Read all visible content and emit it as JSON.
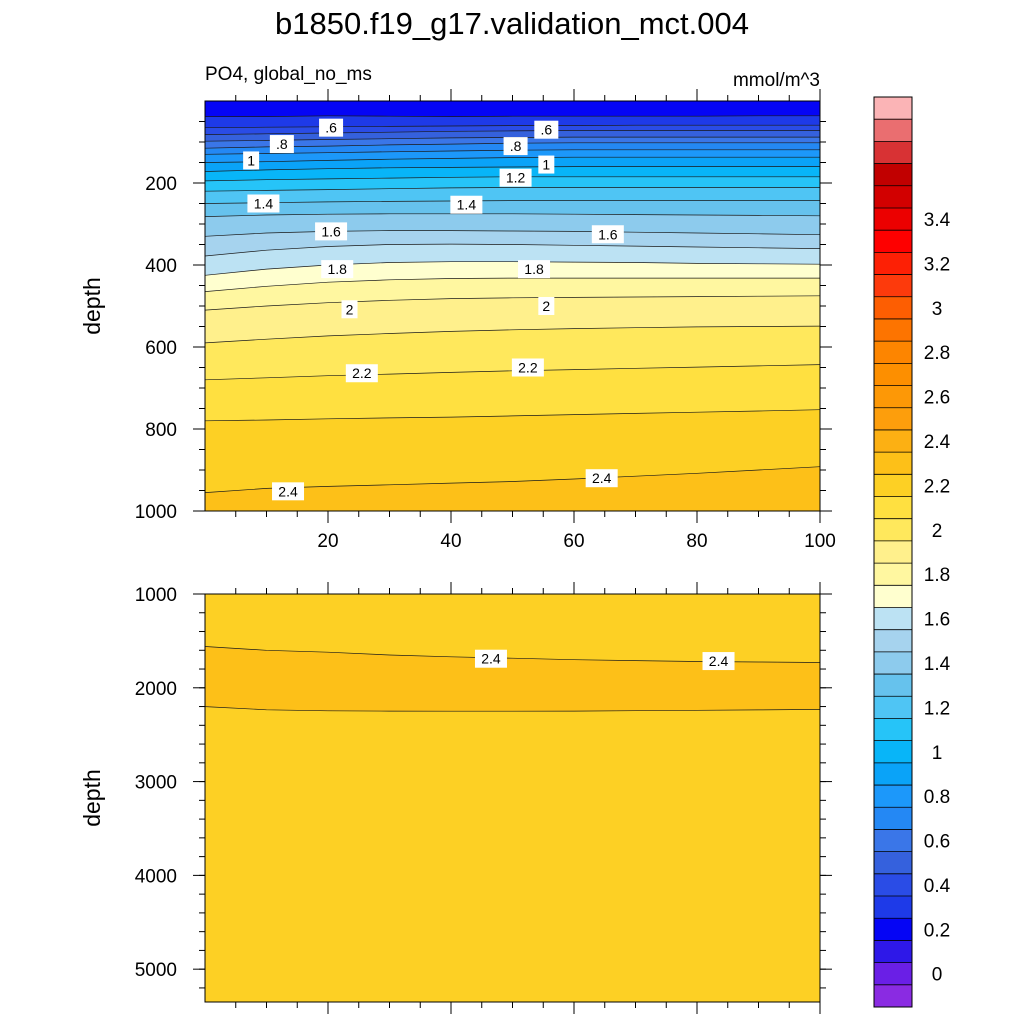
{
  "chart_data": {
    "type": "contour",
    "title": "b1850.f19_g17.validation_mct.004",
    "subtitle_left": "PO4, global_no_ms",
    "subtitle_right": "mmol/m^3",
    "x": [
      0,
      10,
      20,
      30,
      40,
      50,
      60,
      70,
      80,
      90,
      100
    ],
    "panels": [
      {
        "name": "upper",
        "ylabel": "depth",
        "ylim": [
          1000,
          0
        ],
        "yticks": [
          200,
          400,
          600,
          800,
          1000
        ],
        "ytick_labels": [
          "200",
          "400",
          "600",
          "800",
          "1000"
        ],
        "xticks": [
          20,
          40,
          60,
          80,
          100
        ],
        "xtick_labels": [
          "20",
          "40",
          "60",
          "80",
          "100"
        ],
        "x_minor_step": 5,
        "y_minor_step": 50,
        "contour_levels": [
          {
            "level": 0.4,
            "depth": [
              38,
              38,
              36,
              37,
              38,
              37,
              37,
              37,
              37,
              36,
              36
            ]
          },
          {
            "level": 0.5,
            "depth": [
              65,
              64,
              63,
              62,
              61,
              60,
              60,
              59,
              59,
              59,
              59
            ]
          },
          {
            "level": 0.6,
            "depth": [
              82,
              80,
              78,
              76,
              74,
              73,
              72,
              72,
              72,
              72,
              72
            ]
          },
          {
            "level": 0.7,
            "depth": [
              98,
              96,
              94,
              92,
              90,
              89,
              88,
              88,
              88,
              88,
              88
            ]
          },
          {
            "level": 0.8,
            "depth": [
              115,
              112,
              110,
              107,
              105,
              103,
              102,
              102,
              102,
              102,
              102
            ]
          },
          {
            "level": 0.9,
            "depth": [
              130,
              128,
              126,
              124,
              122,
              120,
              119,
              119,
              119,
              119,
              119
            ]
          },
          {
            "level": 1.0,
            "depth": [
              150,
              148,
              145,
              142,
              140,
              138,
              137,
              137,
              137,
              137,
              137
            ]
          },
          {
            "level": 1.1,
            "depth": [
              172,
              168,
              165,
              163,
              162,
              161,
              160,
              160,
              160,
              160,
              160
            ]
          },
          {
            "level": 1.2,
            "depth": [
              195,
              192,
              190,
              188,
              186,
              185,
              185,
              185,
              185,
              185,
              185
            ]
          },
          {
            "level": 1.3,
            "depth": [
              220,
              218,
              216,
              214,
              212,
              211,
              211,
              211,
              211,
              211,
              211
            ]
          },
          {
            "level": 1.4,
            "depth": [
              250,
              248,
              246,
              245,
              244,
              243,
              243,
              243,
              243,
              243,
              243
            ]
          },
          {
            "level": 1.5,
            "depth": [
              282,
              278,
              276,
              275,
              275,
              275,
              276,
              277,
              278,
              279,
              280
            ]
          },
          {
            "level": 1.6,
            "depth": [
              330,
              322,
              318,
              316,
              316,
              317,
              318,
              320,
              322,
              324,
              326
            ]
          },
          {
            "level": 1.7,
            "depth": [
              378,
              364,
              355,
              350,
              349,
              350,
              352,
              354,
              356,
              358,
              360
            ]
          },
          {
            "level": 1.8,
            "depth": [
              425,
              410,
              400,
              394,
              392,
              392,
              393,
              394,
              396,
              397,
              398
            ]
          },
          {
            "level": 1.9,
            "depth": [
              465,
              452,
              442,
              436,
              433,
              432,
              432,
              432,
              432,
              432,
              432
            ]
          },
          {
            "level": 2.0,
            "depth": [
              510,
              500,
              492,
              486,
              482,
              480,
              479,
              478,
              477,
              476,
              475
            ]
          },
          {
            "level": 2.1,
            "depth": [
              590,
              581,
              573,
              567,
              562,
              558,
              555,
              553,
              551,
              550,
              549
            ]
          },
          {
            "level": 2.2,
            "depth": [
              680,
              675,
              670,
              666,
              662,
              658,
              655,
              652,
              649,
              646,
              643
            ]
          },
          {
            "level": 2.3,
            "depth": [
              780,
              778,
              775,
              773,
              771,
              768,
              765,
              762,
              759,
              756,
              753
            ]
          },
          {
            "level": 2.4,
            "depth": [
              955,
              945,
              940,
              936,
              932,
              928,
              922,
              915,
              908,
              900,
              892
            ]
          }
        ],
        "contour_labels": [
          {
            "text": ".6",
            "x": 20.5,
            "depth": 65
          },
          {
            "text": ".6",
            "x": 55.5,
            "depth": 70
          },
          {
            "text": ".8",
            "x": 12.5,
            "depth": 105
          },
          {
            "text": ".8",
            "x": 50.5,
            "depth": 110
          },
          {
            "text": "1",
            "x": 7.5,
            "depth": 145
          },
          {
            "text": "1",
            "x": 55.5,
            "depth": 155
          },
          {
            "text": "1.2",
            "x": 50.5,
            "depth": 187
          },
          {
            "text": "1.4",
            "x": 9.5,
            "depth": 250
          },
          {
            "text": "1.4",
            "x": 42.5,
            "depth": 253
          },
          {
            "text": "1.6",
            "x": 20.5,
            "depth": 318
          },
          {
            "text": "1.6",
            "x": 65.5,
            "depth": 325
          },
          {
            "text": "1.8",
            "x": 21.5,
            "depth": 410
          },
          {
            "text": "1.8",
            "x": 53.5,
            "depth": 410
          },
          {
            "text": "2",
            "x": 23.5,
            "depth": 508
          },
          {
            "text": "2",
            "x": 55.5,
            "depth": 500
          },
          {
            "text": "2.2",
            "x": 25.5,
            "depth": 664
          },
          {
            "text": "2.2",
            "x": 52.5,
            "depth": 650
          },
          {
            "text": "2.4",
            "x": 13.5,
            "depth": 952
          },
          {
            "text": "2.4",
            "x": 64.5,
            "depth": 920
          }
        ]
      },
      {
        "name": "lower",
        "ylabel": "depth",
        "ylim": [
          5350,
          1000
        ],
        "yticks": [
          1000,
          2000,
          3000,
          4000,
          5000
        ],
        "ytick_labels": [
          "1000",
          "2000",
          "3000",
          "4000",
          "5000"
        ],
        "xticks": [
          20,
          40,
          60,
          80,
          100
        ],
        "xtick_labels": [
          "",
          "",
          "",
          "",
          ""
        ],
        "x_minor_step": 5,
        "y_minor_step": 200,
        "contour_levels": [
          {
            "level": 2.4,
            "depth": [
              1560,
              1600,
              1620,
              1650,
              1670,
              1685,
              1700,
              1710,
              1720,
              1725,
              1730
            ]
          },
          {
            "level": 2.3,
            "depth": [
              2200,
              2235,
              2245,
              2248,
              2250,
              2250,
              2248,
              2244,
              2240,
              2236,
              2230
            ]
          }
        ],
        "contour_labels": [
          {
            "text": "2.4",
            "x": 46.5,
            "depth": 1690
          },
          {
            "text": "2.4",
            "x": 83.5,
            "depth": 1715
          }
        ]
      }
    ],
    "colorbar": {
      "labels": [
        "0",
        "0.2",
        "0.4",
        "0.6",
        "0.8",
        "1",
        "1.2",
        "1.4",
        "1.6",
        "1.8",
        "2",
        "2.2",
        "2.4",
        "2.6",
        "2.8",
        "3",
        "3.2",
        "3.4"
      ],
      "colors_bottom_to_top": [
        "#8a2be2",
        "#6a1fe6",
        "#2e18e8",
        "#0505f5",
        "#1e3ae8",
        "#2a4ce6",
        "#3561dd",
        "#3a76e8",
        "#2488f4",
        "#1c98fa",
        "#0aa3f8",
        "#08b5f8",
        "#26c4f8",
        "#4fc5f4",
        "#66c2ed",
        "#8dcbed",
        "#a6d3ee",
        "#bce2f3",
        "#ffffcf",
        "#fff7a0",
        "#fff08c",
        "#ffe85c",
        "#ffe040",
        "#fdd024",
        "#fdc018",
        "#fcb013",
        "#fd9e0c",
        "#fd9806",
        "#fd8f00",
        "#fd8500",
        "#fd7400",
        "#fd5e02",
        "#fd3a0c",
        "#fd2005",
        "#fe0000",
        "#ec0000",
        "#d20000",
        "#c10000",
        "#d83234",
        "#ea6e70",
        "#fbb4b6"
      ]
    }
  }
}
